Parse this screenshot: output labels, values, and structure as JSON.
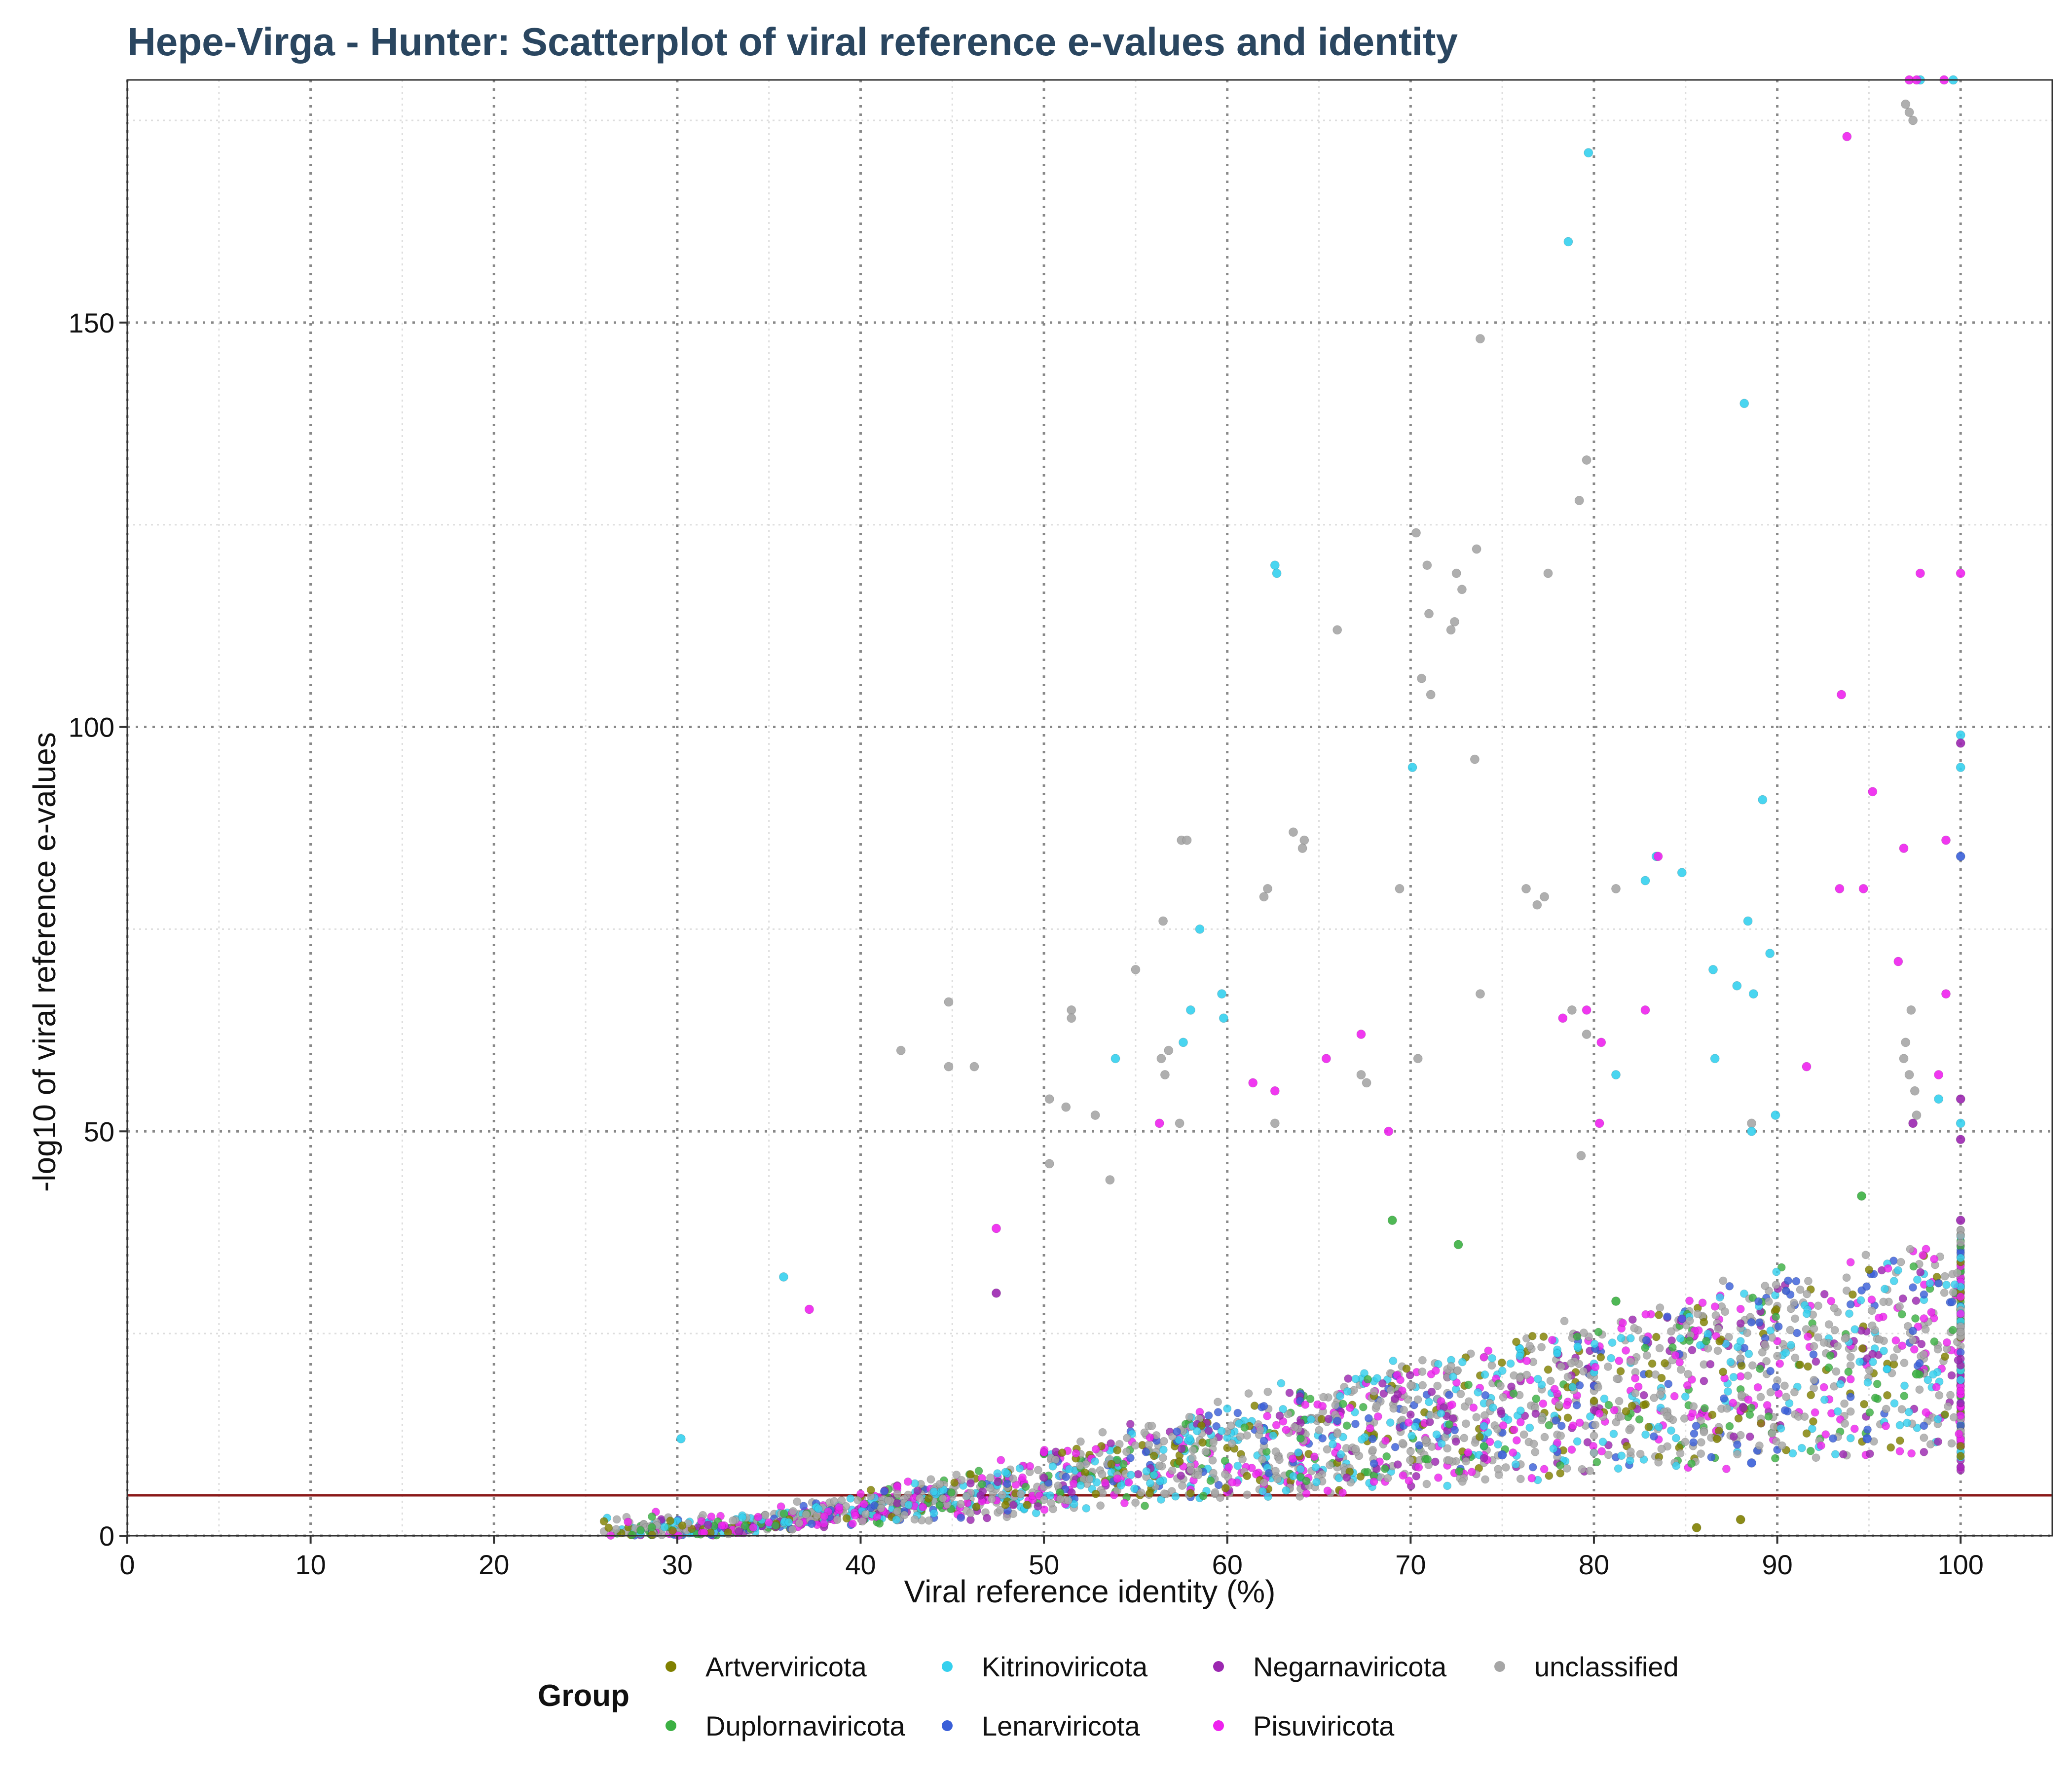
{
  "chart_data": {
    "type": "scatter",
    "title": "Hepe-Virga - Hunter: Scatterplot of viral reference e-values and identity",
    "xlabel": "Viral reference identity (%)",
    "ylabel": "-log10 of viral reference e-values",
    "xlim": [
      0,
      105
    ],
    "ylim": [
      0,
      180
    ],
    "xticks": [
      0,
      10,
      20,
      30,
      40,
      50,
      60,
      70,
      80,
      90,
      100
    ],
    "yticks": [
      0,
      50,
      100,
      150
    ],
    "xtick_labels": [
      "0",
      "10",
      "20",
      "30",
      "40",
      "50",
      "60",
      "70",
      "80",
      "90",
      "100"
    ],
    "ytick_labels": [
      "0",
      "50",
      "100",
      "150"
    ],
    "grid": true,
    "threshold_line": {
      "y": 5,
      "color": "#8b1a1a"
    },
    "legend": {
      "title": "Group",
      "position": "bottom",
      "entries": [
        {
          "name": "Artverviricota",
          "color": "#808000"
        },
        {
          "name": "Duplornaviricota",
          "color": "#3cb043"
        },
        {
          "name": "Kitrinoviricota",
          "color": "#35d0ee"
        },
        {
          "name": "Lenarviricota",
          "color": "#3a5fd8"
        },
        {
          "name": "Negarnaviricota",
          "color": "#9b27b0"
        },
        {
          "name": "Pisuviricota",
          "color": "#ee22ee"
        },
        {
          "name": "unclassified",
          "color": "#a6a6a6"
        }
      ]
    },
    "series": [
      {
        "name": "unclassified",
        "color": "#a6a6a6",
        "points": [
          [
            97.2,
            176
          ],
          [
            97.4,
            175
          ],
          [
            97.0,
            177
          ],
          [
            73.8,
            148
          ],
          [
            79.6,
            133
          ],
          [
            79.2,
            128
          ],
          [
            70.3,
            124
          ],
          [
            73.6,
            122
          ],
          [
            70.9,
            120
          ],
          [
            72.5,
            119
          ],
          [
            77.5,
            119
          ],
          [
            72.8,
            117
          ],
          [
            71.0,
            114
          ],
          [
            72.4,
            113
          ],
          [
            72.2,
            112
          ],
          [
            66.0,
            112
          ],
          [
            70.6,
            106
          ],
          [
            71.1,
            104
          ],
          [
            73.5,
            96
          ],
          [
            63.6,
            87
          ],
          [
            57.5,
            86
          ],
          [
            57.8,
            86
          ],
          [
            64.2,
            86
          ],
          [
            64.1,
            85
          ],
          [
            62.2,
            80
          ],
          [
            62.0,
            79
          ],
          [
            69.4,
            80
          ],
          [
            76.3,
            80
          ],
          [
            77.3,
            79
          ],
          [
            76.9,
            78
          ],
          [
            81.2,
            80
          ],
          [
            56.5,
            76
          ],
          [
            55.0,
            70
          ],
          [
            73.8,
            67
          ],
          [
            44.8,
            66
          ],
          [
            51.5,
            65
          ],
          [
            51.5,
            64
          ],
          [
            97.3,
            65
          ],
          [
            78.8,
            65
          ],
          [
            79.6,
            62
          ],
          [
            97.0,
            61
          ],
          [
            96.9,
            59
          ],
          [
            42.2,
            60
          ],
          [
            56.8,
            60
          ],
          [
            56.4,
            59
          ],
          [
            70.4,
            59
          ],
          [
            46.2,
            58
          ],
          [
            44.8,
            58
          ],
          [
            56.6,
            57
          ],
          [
            97.2,
            57
          ],
          [
            67.3,
            57
          ],
          [
            67.6,
            56
          ],
          [
            97.5,
            55
          ],
          [
            50.3,
            54
          ],
          [
            51.2,
            53
          ],
          [
            52.8,
            52
          ],
          [
            57.4,
            51
          ],
          [
            62.6,
            51
          ],
          [
            79.3,
            47
          ],
          [
            50.3,
            46
          ],
          [
            53.6,
            44
          ],
          [
            97.6,
            52
          ],
          [
            88.6,
            51
          ]
        ]
      },
      {
        "name": "Kitrinoviricota",
        "color": "#35d0ee",
        "points": [
          [
            99.6,
            180
          ],
          [
            97.8,
            180
          ],
          [
            79.7,
            171
          ],
          [
            78.6,
            160
          ],
          [
            88.2,
            140
          ],
          [
            62.6,
            120
          ],
          [
            62.7,
            119
          ],
          [
            100,
            99
          ],
          [
            70.1,
            95
          ],
          [
            100,
            95
          ],
          [
            89.2,
            91
          ],
          [
            83.4,
            84
          ],
          [
            84.8,
            82
          ],
          [
            82.8,
            81
          ],
          [
            58.5,
            75
          ],
          [
            88.4,
            76
          ],
          [
            89.6,
            72
          ],
          [
            86.5,
            70
          ],
          [
            87.8,
            68
          ],
          [
            88.7,
            67
          ],
          [
            59.7,
            67
          ],
          [
            58.0,
            65
          ],
          [
            59.8,
            64
          ],
          [
            57.6,
            61
          ],
          [
            53.9,
            59
          ],
          [
            86.6,
            59
          ],
          [
            81.2,
            57
          ],
          [
            98.8,
            54
          ],
          [
            89.9,
            52
          ],
          [
            88.6,
            50
          ],
          [
            100,
            51
          ],
          [
            35.8,
            32
          ],
          [
            30.2,
            12
          ]
        ]
      },
      {
        "name": "Pisuviricota",
        "color": "#ee22ee",
        "points": [
          [
            97.2,
            180
          ],
          [
            97.6,
            180
          ],
          [
            99.1,
            180
          ],
          [
            93.8,
            173
          ],
          [
            97.8,
            119
          ],
          [
            100,
            119
          ],
          [
            93.5,
            104
          ],
          [
            95.2,
            92
          ],
          [
            99.2,
            86
          ],
          [
            96.9,
            85
          ],
          [
            83.5,
            84
          ],
          [
            93.4,
            80
          ],
          [
            94.7,
            80
          ],
          [
            96.6,
            71
          ],
          [
            99.2,
            67
          ],
          [
            82.8,
            65
          ],
          [
            79.6,
            65
          ],
          [
            78.3,
            64
          ],
          [
            80.4,
            61
          ],
          [
            67.3,
            62
          ],
          [
            65.4,
            59
          ],
          [
            91.6,
            58
          ],
          [
            98.8,
            57
          ],
          [
            61.4,
            56
          ],
          [
            62.6,
            55
          ],
          [
            56.3,
            51
          ],
          [
            68.8,
            50
          ],
          [
            80.3,
            51
          ],
          [
            37.2,
            28
          ],
          [
            47.4,
            38
          ]
        ]
      },
      {
        "name": "Negarnaviricota",
        "color": "#9b27b0",
        "points": [
          [
            100,
            98
          ],
          [
            100,
            54
          ],
          [
            97.4,
            51
          ],
          [
            100,
            49
          ],
          [
            47.4,
            30
          ],
          [
            100,
            39
          ]
        ]
      },
      {
        "name": "Lenarviricota",
        "color": "#3a5fd8",
        "points": [
          [
            100,
            84
          ],
          [
            94.9,
            12
          ],
          [
            88.6,
            9
          ],
          [
            75.0,
            10
          ]
        ]
      },
      {
        "name": "Duplornaviricota",
        "color": "#3cb043",
        "points": [
          [
            69.0,
            39
          ],
          [
            72.6,
            36
          ],
          [
            94.6,
            42
          ],
          [
            97.6,
            20
          ],
          [
            81.2,
            29
          ]
        ]
      },
      {
        "name": "Artverviricota",
        "color": "#808000",
        "points": [
          [
            85.6,
            1
          ],
          [
            88.0,
            2
          ]
        ]
      }
    ]
  }
}
